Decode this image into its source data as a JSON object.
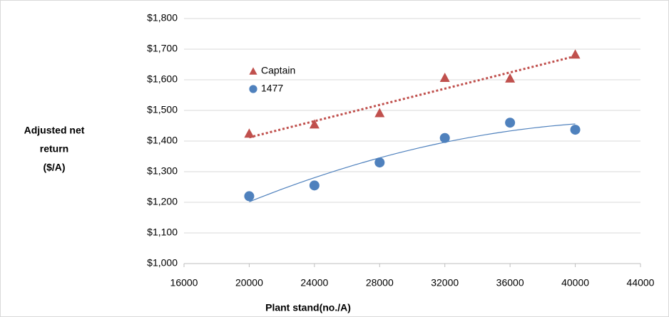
{
  "chart_data": {
    "type": "scatter",
    "ylabel": [
      "Adjusted net",
      "return",
      "($/A)"
    ],
    "xlabel": "Plant stand(no./A)",
    "xlim": [
      16000,
      44000
    ],
    "xticks": [
      16000,
      20000,
      24000,
      28000,
      32000,
      36000,
      40000,
      44000
    ],
    "ylim": [
      1000,
      1800
    ],
    "yticks": [
      {
        "value": 1000,
        "label": "$1,000"
      },
      {
        "value": 1100,
        "label": "$1,100"
      },
      {
        "value": 1200,
        "label": "$1,200"
      },
      {
        "value": 1300,
        "label": "$1,300"
      },
      {
        "value": 1400,
        "label": "$1,400"
      },
      {
        "value": 1500,
        "label": "$1,500"
      },
      {
        "value": 1600,
        "label": "$1,600"
      },
      {
        "value": 1700,
        "label": "$1,700"
      },
      {
        "value": 1800,
        "label": "$1,800"
      }
    ],
    "grid": true,
    "legend": "upper left",
    "series": [
      {
        "name": "Captain",
        "color": "#c0504d",
        "marker": "triangle",
        "trendline": "linear",
        "x": [
          20000,
          24000,
          28000,
          32000,
          36000,
          40000
        ],
        "values": [
          1425,
          1455,
          1492,
          1607,
          1605,
          1683
        ]
      },
      {
        "name": "1477",
        "color": "#4f81bd",
        "marker": "circle",
        "trendline": "polynomial",
        "x": [
          20000,
          24000,
          28000,
          32000,
          36000,
          40000
        ],
        "values": [
          1220,
          1255,
          1330,
          1410,
          1460,
          1437
        ]
      }
    ]
  }
}
